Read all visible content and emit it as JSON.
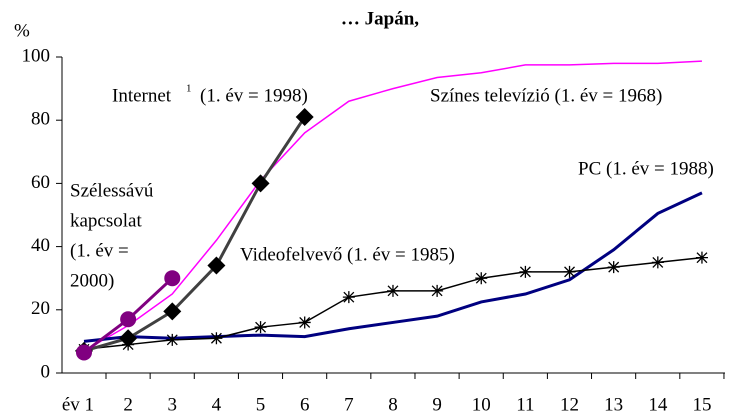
{
  "chart_data": {
    "type": "line",
    "title": "… Japán,",
    "y_label": "%",
    "categories": [
      "év 1",
      "2",
      "3",
      "4",
      "5",
      "6",
      "7",
      "8",
      "9",
      "10",
      "11",
      "12",
      "13",
      "14",
      "15"
    ],
    "ylim": [
      0,
      100
    ],
    "yticks": [
      0,
      20,
      40,
      60,
      80,
      100
    ],
    "series": [
      {
        "label_lines": [
          "Színes televízió (1. év = 1968)"
        ],
        "color": "#ff00ff",
        "marker": "none",
        "width": 1.5,
        "values": [
          7,
          15,
          25,
          42,
          61,
          76,
          86,
          90,
          93.5,
          95,
          97.5,
          97.5,
          98,
          98,
          98.7
        ]
      },
      {
        "label_lines": [
          "PC (1. év = 1988)"
        ],
        "color": "#000080",
        "marker": "none",
        "width": 3,
        "values": [
          10,
          11.5,
          11,
          11.5,
          12,
          11.5,
          14,
          16,
          18,
          22.5,
          25,
          29.5,
          39,
          50.5,
          57
        ]
      },
      {
        "label_lines": [
          "Videofelvevő (1. év = 1985)"
        ],
        "color": "#000000",
        "marker": "asterisk",
        "width": 1.5,
        "values": [
          7.5,
          9,
          10.5,
          11,
          14.5,
          16,
          24,
          26,
          26,
          30,
          32,
          32,
          33.5,
          35,
          36.5
        ]
      },
      {
        "label_lines": [
          "Internet",
          "(1. év = 1998)"
        ],
        "footnote": "1",
        "color": "#404040",
        "marker": "diamond",
        "width": 3,
        "values": [
          7,
          11,
          19.5,
          34,
          60,
          81,
          null,
          null,
          null,
          null,
          null,
          null,
          null,
          null,
          null
        ]
      },
      {
        "label_lines": [
          "Szélessávú",
          "kapcsolat",
          "(1. év =",
          "2000)"
        ],
        "color": "#800080",
        "marker": "circle",
        "width": 3,
        "values": [
          6.5,
          17,
          30,
          null,
          null,
          null,
          null,
          null,
          null,
          null,
          null,
          null,
          null,
          null,
          null
        ]
      }
    ]
  }
}
